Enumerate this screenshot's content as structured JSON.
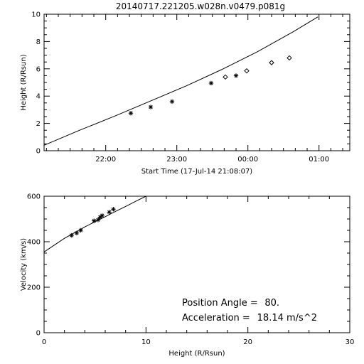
{
  "title": "20140717.221205.w028n.v0479.p081g",
  "chart_data": [
    {
      "type": "scatter",
      "xlabel": "Start Time (17-Jul-14 21:08:07)",
      "ylabel": "Height (R/Rsun)",
      "x_ticks": [
        {
          "label": "22:00",
          "t": 0.867
        },
        {
          "label": "23:00",
          "t": 1.867
        },
        {
          "label": "00:00",
          "t": 2.867
        },
        {
          "label": "01:00",
          "t": 3.867
        }
      ],
      "xlim_hours_after_start": [
        0,
        4.3
      ],
      "y_ticks": [
        "0",
        "2",
        "4",
        "6",
        "8",
        "10"
      ],
      "ylim": [
        0,
        10
      ],
      "fit_line": {
        "t": [
          0.0,
          0.5,
          1.0,
          1.5,
          2.0,
          2.5,
          3.0,
          3.5,
          3.85
        ],
        "h": [
          0.4,
          1.5,
          2.55,
          3.65,
          4.75,
          5.95,
          7.25,
          8.7,
          9.8
        ]
      },
      "series": [
        {
          "marker": "asterisk",
          "t": [
            1.22,
            1.5,
            1.8,
            2.35,
            2.7
          ],
          "h": [
            2.75,
            3.2,
            3.6,
            4.95,
            5.5
          ]
        },
        {
          "marker": "diamond",
          "t": [
            2.55,
            2.85,
            3.2,
            3.45
          ],
          "h": [
            5.4,
            5.85,
            6.45,
            6.8
          ]
        }
      ]
    },
    {
      "type": "scatter",
      "xlabel": "Height (R/Rsun)",
      "ylabel": "Velocity (km/s)",
      "x_ticks": [
        "0",
        "10",
        "20",
        "30"
      ],
      "xlim": [
        0,
        30
      ],
      "y_ticks": [
        "0",
        "200",
        "400",
        "600"
      ],
      "ylim": [
        0,
        600
      ],
      "fit_line": {
        "h": [
          0.0,
          1.0,
          2.0,
          3.0,
          4.0,
          5.0,
          6.0,
          7.0,
          8.0,
          9.0,
          10.0
        ],
        "v": [
          355,
          385,
          415,
          440,
          465,
          488,
          510,
          533,
          555,
          578,
          600
        ]
      },
      "points": {
        "marker": "asterisk",
        "h": [
          2.7,
          3.2,
          3.6,
          4.9,
          5.3,
          5.5,
          5.7,
          6.4,
          6.8
        ],
        "v": [
          428,
          438,
          450,
          492,
          496,
          508,
          515,
          530,
          543
        ]
      },
      "annotations": [
        {
          "label": "Position Angle =",
          "value": "80."
        },
        {
          "label": "Acceleration =",
          "value": "18.14 m/s^2"
        }
      ]
    }
  ]
}
